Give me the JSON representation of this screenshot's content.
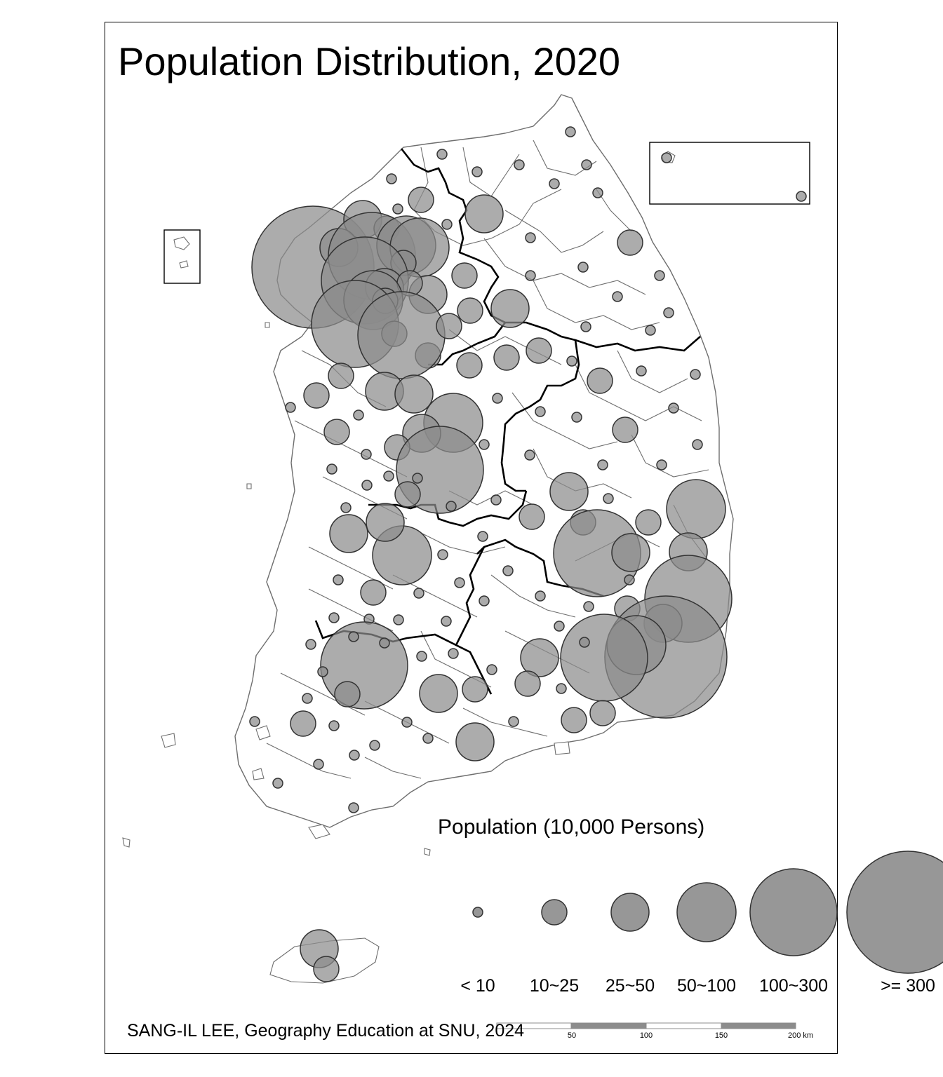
{
  "map": {
    "title": "Population Distribution, 2020",
    "credit": "SANG-IL LEE, Geography Education at SNU, 2024"
  },
  "legend": {
    "title": "Population (10,000 Persons)",
    "classes": [
      {
        "label": "< 10"
      },
      {
        "label": "10~25"
      },
      {
        "label": "25~50"
      },
      {
        "label": "50~100"
      },
      {
        "label": "100~300"
      },
      {
        "label": ">= 300"
      }
    ]
  },
  "scale_bar": {
    "labels": [
      "50",
      "100",
      "150",
      "200 km"
    ]
  },
  "colors": {
    "symbol_fill": "#8c8c8c",
    "symbol_stroke": "#333333",
    "boundary": "#6e6e6e",
    "province_boundary": "#000000"
  }
}
